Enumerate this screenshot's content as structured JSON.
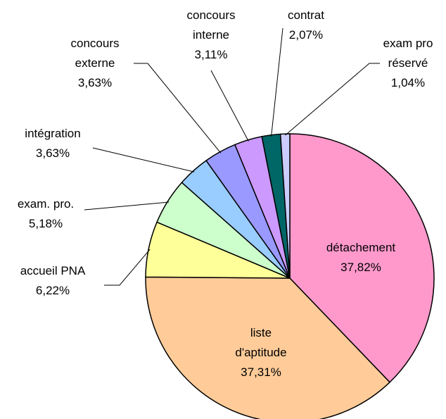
{
  "chart_data": {
    "type": "pie",
    "categories": [
      "détachement",
      "liste\nd'aptitude",
      "accueil PNA",
      "exam. pro.",
      "intégration",
      "concours\nexterne",
      "concours\ninterne",
      "contrat",
      "exam pro\nréservé"
    ],
    "values": [
      37.82,
      37.31,
      6.22,
      5.18,
      3.63,
      3.63,
      3.11,
      2.07,
      1.04
    ],
    "value_labels": [
      "37,82%",
      "37,31%",
      "6,22%",
      "5,18%",
      "3,63%",
      "3,63%",
      "3,11%",
      "2,07%",
      "1,04%"
    ],
    "colors": [
      "#ff99cc",
      "#ffcc99",
      "#ffff99",
      "#ccffcc",
      "#99ccff",
      "#9999ff",
      "#cc99ff",
      "#006666",
      "#ccccff"
    ]
  }
}
